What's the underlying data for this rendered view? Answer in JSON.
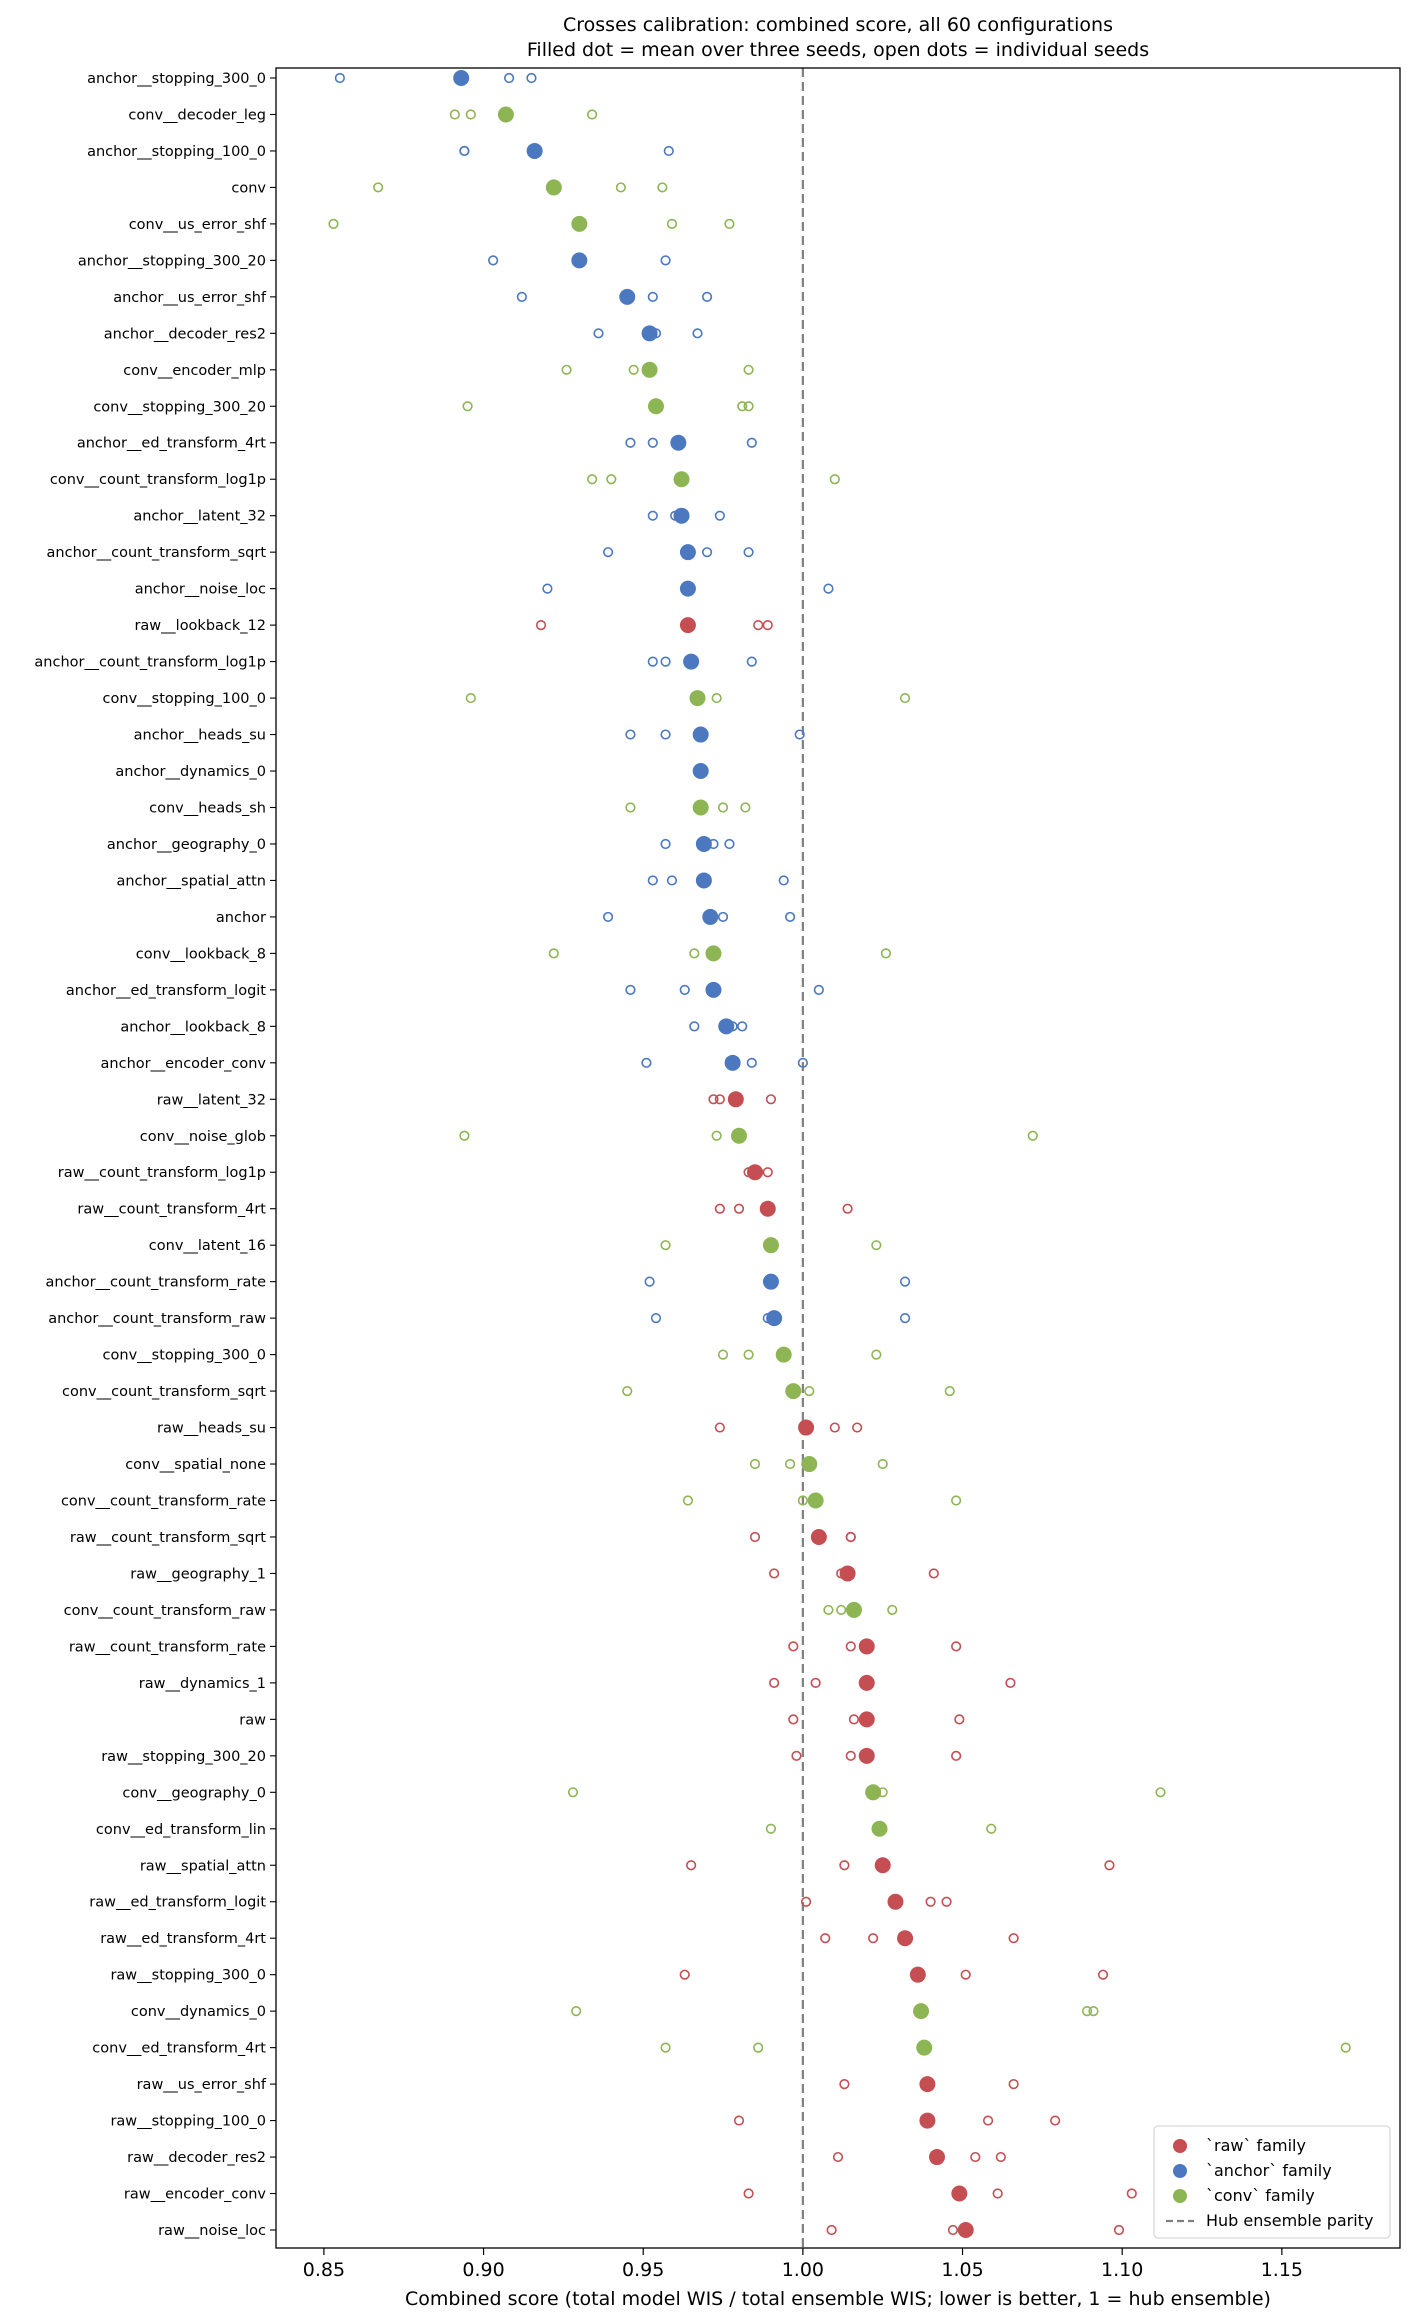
{
  "chart_data": {
    "type": "scatter",
    "title": "Crosses calibration: combined score, all 60 configurations",
    "subtitle": "Filled dot = mean over three seeds, open dots = individual seeds",
    "xlabel": "Combined score (total model WIS / total ensemble WIS; lower is better, 1 = hub ensemble)",
    "ylabel": "",
    "xlim": [
      0.835,
      1.187
    ],
    "xticks": [
      0.85,
      0.9,
      0.95,
      1.0,
      1.05,
      1.1,
      1.15
    ],
    "xtick_labels": [
      "0.85",
      "0.90",
      "0.95",
      "1.00",
      "1.05",
      "1.10",
      "1.15"
    ],
    "reference_line": {
      "x": 1.0,
      "style": "dashed",
      "color": "#808080"
    },
    "grid": false,
    "legend_position": "bottom-right",
    "family_colors": {
      "raw": "#c44e52",
      "anchor": "#4c78c0",
      "conv": "#8db554"
    },
    "legend": [
      {
        "label": "`raw` family",
        "family": "raw"
      },
      {
        "label": "`anchor` family",
        "family": "anchor"
      },
      {
        "label": "`conv` family",
        "family": "conv"
      },
      {
        "label": "Hub ensemble parity",
        "family": "line"
      }
    ],
    "configurations": [
      {
        "name": "anchor__stopping_300_0",
        "family": "anchor",
        "mean": 0.893,
        "seeds": [
          0.855,
          0.908,
          0.915
        ]
      },
      {
        "name": "conv__decoder_leg",
        "family": "conv",
        "mean": 0.907,
        "seeds": [
          0.891,
          0.896,
          0.934
        ]
      },
      {
        "name": "anchor__stopping_100_0",
        "family": "anchor",
        "mean": 0.916,
        "seeds": [
          0.894,
          0.894,
          0.958
        ]
      },
      {
        "name": "conv",
        "family": "conv",
        "mean": 0.922,
        "seeds": [
          0.867,
          0.943,
          0.956
        ]
      },
      {
        "name": "conv__us_error_shf",
        "family": "conv",
        "mean": 0.93,
        "seeds": [
          0.853,
          0.959,
          0.977
        ]
      },
      {
        "name": "anchor__stopping_300_20",
        "family": "anchor",
        "mean": 0.93,
        "seeds": [
          0.903,
          0.957,
          0.93
        ]
      },
      {
        "name": "anchor__us_error_shf",
        "family": "anchor",
        "mean": 0.945,
        "seeds": [
          0.912,
          0.953,
          0.97
        ]
      },
      {
        "name": "anchor__decoder_res2",
        "family": "anchor",
        "mean": 0.952,
        "seeds": [
          0.936,
          0.954,
          0.967
        ]
      },
      {
        "name": "conv__encoder_mlp",
        "family": "conv",
        "mean": 0.952,
        "seeds": [
          0.926,
          0.947,
          0.983
        ]
      },
      {
        "name": "conv__stopping_300_20",
        "family": "conv",
        "mean": 0.954,
        "seeds": [
          0.895,
          0.981,
          0.983
        ]
      },
      {
        "name": "anchor__ed_transform_4rt",
        "family": "anchor",
        "mean": 0.961,
        "seeds": [
          0.946,
          0.953,
          0.984
        ]
      },
      {
        "name": "conv__count_transform_log1p",
        "family": "conv",
        "mean": 0.962,
        "seeds": [
          0.934,
          0.94,
          1.01
        ]
      },
      {
        "name": "anchor__latent_32",
        "family": "anchor",
        "mean": 0.962,
        "seeds": [
          0.953,
          0.96,
          0.974
        ]
      },
      {
        "name": "anchor__count_transform_sqrt",
        "family": "anchor",
        "mean": 0.964,
        "seeds": [
          0.939,
          0.97,
          0.983
        ]
      },
      {
        "name": "anchor__noise_loc",
        "family": "anchor",
        "mean": 0.964,
        "seeds": [
          0.92,
          0.964,
          1.008
        ]
      },
      {
        "name": "raw__lookback_12",
        "family": "raw",
        "mean": 0.964,
        "seeds": [
          0.918,
          0.986,
          0.989
        ]
      },
      {
        "name": "anchor__count_transform_log1p",
        "family": "anchor",
        "mean": 0.965,
        "seeds": [
          0.953,
          0.957,
          0.984
        ]
      },
      {
        "name": "conv__stopping_100_0",
        "family": "conv",
        "mean": 0.967,
        "seeds": [
          0.896,
          0.973,
          1.032
        ]
      },
      {
        "name": "anchor__heads_su",
        "family": "anchor",
        "mean": 0.968,
        "seeds": [
          0.946,
          0.957,
          0.999
        ]
      },
      {
        "name": "anchor__dynamics_0",
        "family": "anchor",
        "mean": 0.968,
        "seeds": [
          0.968,
          0.968,
          0.968
        ]
      },
      {
        "name": "conv__heads_sh",
        "family": "conv",
        "mean": 0.968,
        "seeds": [
          0.946,
          0.975,
          0.982
        ]
      },
      {
        "name": "anchor__geography_0",
        "family": "anchor",
        "mean": 0.969,
        "seeds": [
          0.957,
          0.972,
          0.977
        ]
      },
      {
        "name": "anchor__spatial_attn",
        "family": "anchor",
        "mean": 0.969,
        "seeds": [
          0.953,
          0.959,
          0.994
        ]
      },
      {
        "name": "anchor",
        "family": "anchor",
        "mean": 0.971,
        "seeds": [
          0.939,
          0.975,
          0.996
        ]
      },
      {
        "name": "conv__lookback_8",
        "family": "conv",
        "mean": 0.972,
        "seeds": [
          0.922,
          0.966,
          1.026
        ]
      },
      {
        "name": "anchor__ed_transform_logit",
        "family": "anchor",
        "mean": 0.972,
        "seeds": [
          0.946,
          0.963,
          1.005
        ]
      },
      {
        "name": "anchor__lookback_8",
        "family": "anchor",
        "mean": 0.976,
        "seeds": [
          0.966,
          0.978,
          0.981
        ]
      },
      {
        "name": "anchor__encoder_conv",
        "family": "anchor",
        "mean": 0.978,
        "seeds": [
          0.951,
          0.984,
          1.0
        ]
      },
      {
        "name": "raw__latent_32",
        "family": "raw",
        "mean": 0.979,
        "seeds": [
          0.972,
          0.974,
          0.99
        ]
      },
      {
        "name": "conv__noise_glob",
        "family": "conv",
        "mean": 0.98,
        "seeds": [
          0.894,
          0.973,
          1.072
        ]
      },
      {
        "name": "raw__count_transform_log1p",
        "family": "raw",
        "mean": 0.985,
        "seeds": [
          0.983,
          0.986,
          0.989
        ]
      },
      {
        "name": "raw__count_transform_4rt",
        "family": "raw",
        "mean": 0.989,
        "seeds": [
          0.974,
          0.98,
          1.014
        ]
      },
      {
        "name": "conv__latent_16",
        "family": "conv",
        "mean": 0.99,
        "seeds": [
          0.957,
          0.99,
          1.023
        ]
      },
      {
        "name": "anchor__count_transform_rate",
        "family": "anchor",
        "mean": 0.99,
        "seeds": [
          0.952,
          0.99,
          1.032
        ]
      },
      {
        "name": "anchor__count_transform_raw",
        "family": "anchor",
        "mean": 0.991,
        "seeds": [
          0.954,
          0.989,
          1.032
        ]
      },
      {
        "name": "conv__stopping_300_0",
        "family": "conv",
        "mean": 0.994,
        "seeds": [
          0.975,
          0.983,
          1.023
        ]
      },
      {
        "name": "conv__count_transform_sqrt",
        "family": "conv",
        "mean": 0.997,
        "seeds": [
          0.945,
          1.002,
          1.046
        ]
      },
      {
        "name": "raw__heads_su",
        "family": "raw",
        "mean": 1.001,
        "seeds": [
          0.974,
          1.01,
          1.017
        ]
      },
      {
        "name": "conv__spatial_none",
        "family": "conv",
        "mean": 1.002,
        "seeds": [
          0.985,
          0.996,
          1.025
        ]
      },
      {
        "name": "conv__count_transform_rate",
        "family": "conv",
        "mean": 1.004,
        "seeds": [
          0.964,
          1.0,
          1.048
        ]
      },
      {
        "name": "raw__count_transform_sqrt",
        "family": "raw",
        "mean": 1.005,
        "seeds": [
          0.985,
          1.015,
          1.015
        ]
      },
      {
        "name": "raw__geography_1",
        "family": "raw",
        "mean": 1.014,
        "seeds": [
          0.991,
          1.012,
          1.041
        ]
      },
      {
        "name": "conv__count_transform_raw",
        "family": "conv",
        "mean": 1.016,
        "seeds": [
          1.008,
          1.012,
          1.028
        ]
      },
      {
        "name": "raw__count_transform_rate",
        "family": "raw",
        "mean": 1.02,
        "seeds": [
          0.997,
          1.015,
          1.048
        ]
      },
      {
        "name": "raw__dynamics_1",
        "family": "raw",
        "mean": 1.02,
        "seeds": [
          0.991,
          1.004,
          1.065
        ]
      },
      {
        "name": "raw",
        "family": "raw",
        "mean": 1.02,
        "seeds": [
          0.997,
          1.016,
          1.049
        ]
      },
      {
        "name": "raw__stopping_300_20",
        "family": "raw",
        "mean": 1.02,
        "seeds": [
          0.998,
          1.015,
          1.048
        ]
      },
      {
        "name": "conv__geography_0",
        "family": "conv",
        "mean": 1.022,
        "seeds": [
          0.928,
          1.025,
          1.112
        ]
      },
      {
        "name": "conv__ed_transform_lin",
        "family": "conv",
        "mean": 1.024,
        "seeds": [
          0.99,
          1.024,
          1.059
        ]
      },
      {
        "name": "raw__spatial_attn",
        "family": "raw",
        "mean": 1.025,
        "seeds": [
          0.965,
          1.013,
          1.096
        ]
      },
      {
        "name": "raw__ed_transform_logit",
        "family": "raw",
        "mean": 1.029,
        "seeds": [
          1.001,
          1.04,
          1.045
        ]
      },
      {
        "name": "raw__ed_transform_4rt",
        "family": "raw",
        "mean": 1.032,
        "seeds": [
          1.007,
          1.022,
          1.066
        ]
      },
      {
        "name": "raw__stopping_300_0",
        "family": "raw",
        "mean": 1.036,
        "seeds": [
          0.963,
          1.051,
          1.094
        ]
      },
      {
        "name": "conv__dynamics_0",
        "family": "conv",
        "mean": 1.037,
        "seeds": [
          0.929,
          1.089,
          1.091
        ]
      },
      {
        "name": "conv__ed_transform_4rt",
        "family": "conv",
        "mean": 1.038,
        "seeds": [
          0.957,
          0.986,
          1.17
        ]
      },
      {
        "name": "raw__us_error_shf",
        "family": "raw",
        "mean": 1.039,
        "seeds": [
          1.013,
          1.039,
          1.066
        ]
      },
      {
        "name": "raw__stopping_100_0",
        "family": "raw",
        "mean": 1.039,
        "seeds": [
          0.98,
          1.058,
          1.079
        ]
      },
      {
        "name": "raw__decoder_res2",
        "family": "raw",
        "mean": 1.042,
        "seeds": [
          1.011,
          1.054,
          1.062
        ]
      },
      {
        "name": "raw__encoder_conv",
        "family": "raw",
        "mean": 1.049,
        "seeds": [
          0.983,
          1.061,
          1.103
        ]
      },
      {
        "name": "raw__noise_loc",
        "family": "raw",
        "mean": 1.051,
        "seeds": [
          1.009,
          1.047,
          1.099
        ]
      }
    ]
  }
}
